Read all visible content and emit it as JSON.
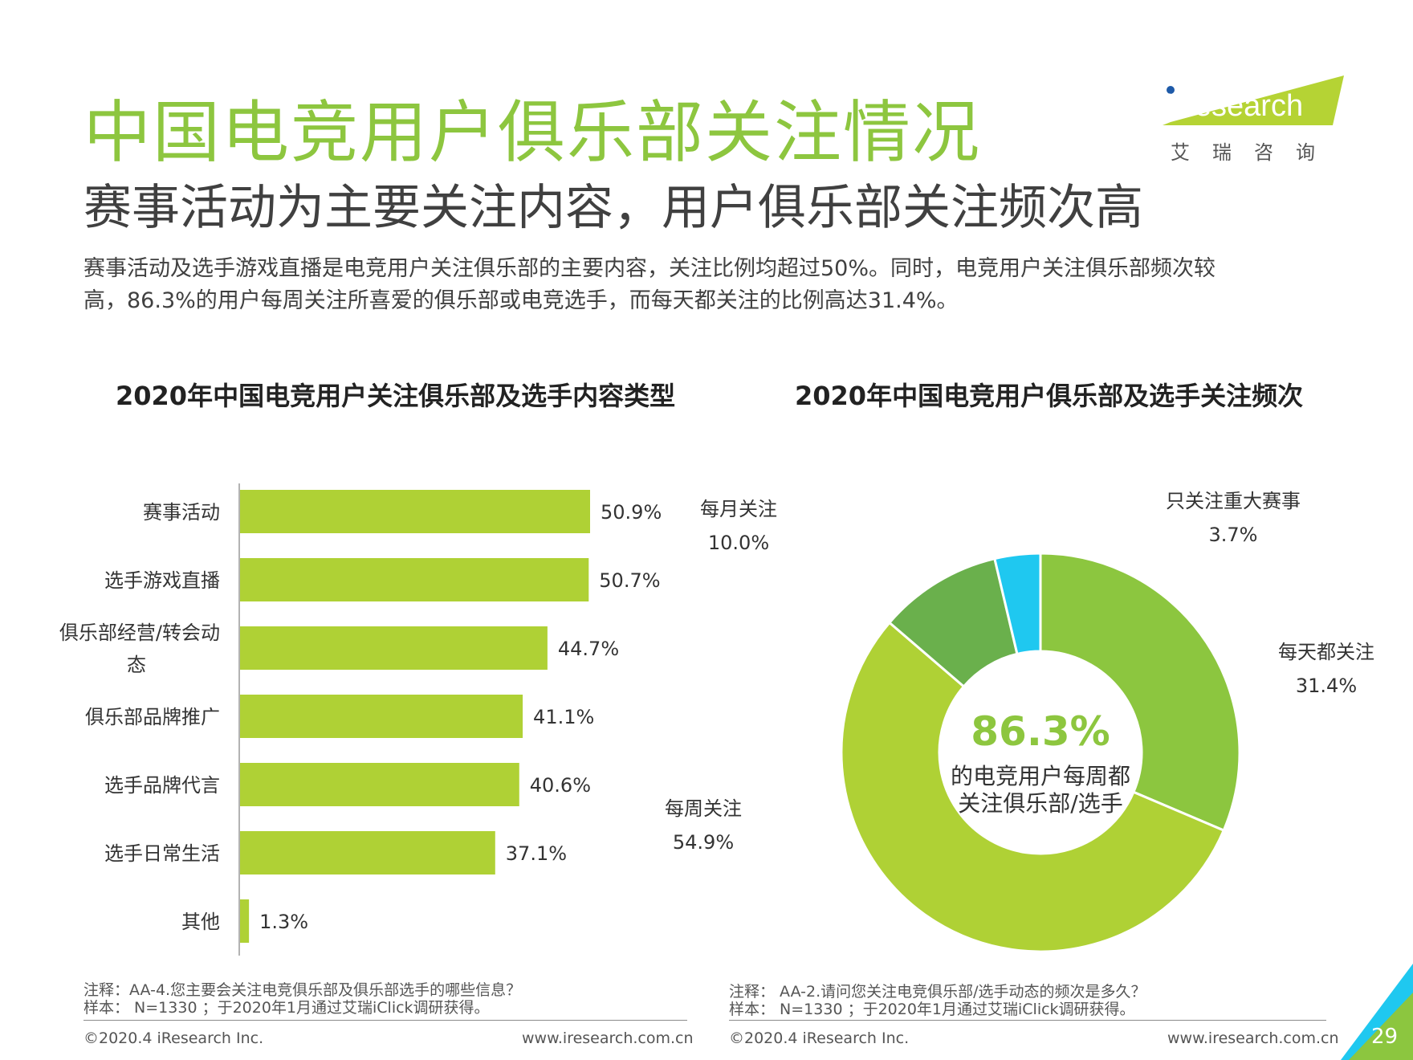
{
  "header": {
    "title": "中国电竞用户俱乐部关注情况",
    "subtitle": "赛事活动为主要关注内容，用户俱乐部关注频次高",
    "desc_line1": "赛事活动及选手游戏直播是电竞用户关注俱乐部的主要内容，关注比例均超过50%。同时，电竞用户关注俱乐部频次较",
    "desc_line2": "高，86.3%的用户每周关注所喜爱的俱乐部或电竞选手，而每天都关注的比例高达31.4%。"
  },
  "logo": {
    "text": "iResearch",
    "sub": "艾瑞咨询"
  },
  "colors": {
    "title_green": "#8dc63f",
    "bar_green": "#afd135",
    "dark_green": "#6ab04c",
    "mid_green": "#8cc63f",
    "cyan": "#1fc8f0"
  },
  "chart_data": [
    {
      "type": "bar",
      "title": "2020年中国电竞用户关注俱乐部及选手内容类型",
      "orientation": "horizontal",
      "categories": [
        "赛事活动",
        "选手游戏直播",
        "俱乐部经营/转会动态",
        "俱乐部品牌推广",
        "选手品牌代言",
        "选手日常生活",
        "其他"
      ],
      "category_lines": [
        [
          "赛事活动"
        ],
        [
          "选手游戏直播"
        ],
        [
          "俱乐部经营/转会动",
          "态"
        ],
        [
          "俱乐部品牌推广"
        ],
        [
          "选手品牌代言"
        ],
        [
          "选手日常生活"
        ],
        [
          "其他"
        ]
      ],
      "values": [
        50.9,
        50.7,
        44.7,
        41.1,
        40.6,
        37.1,
        1.3
      ],
      "labels": [
        "50.9%",
        "50.7%",
        "44.7%",
        "41.1%",
        "40.6%",
        "37.1%",
        "1.3%"
      ],
      "xlim": [
        0,
        60
      ],
      "color": "#afd135",
      "note_line1": "注释：AA-4.您主要会关注电竞俱乐部及俱乐部选手的哪些信息？",
      "note_line2": "样本： N=1330 ；于2020年1月通过艾瑞iClick调研获得。"
    },
    {
      "type": "pie",
      "variant": "donut",
      "title": "2020年中国电竞用户俱乐部及选手关注频次",
      "slices": [
        {
          "name": "每天都关注",
          "value": 31.4,
          "label": "31.4%",
          "color": "#8cc63f"
        },
        {
          "name": "每周关注",
          "value": 54.9,
          "label": "54.9%",
          "color": "#afd135"
        },
        {
          "name": "每月关注",
          "value": 10.0,
          "label": "10.0%",
          "color": "#6ab04c"
        },
        {
          "name": "只关注重大赛事",
          "value": 3.7,
          "label": "3.7%",
          "color": "#1fc8f0"
        }
      ],
      "center_value": "86.3%",
      "center_line1": "的电竞用户每周都",
      "center_line2": "关注俱乐部/选手",
      "note_line1": "注释： AA-2.请问您关注电竞俱乐部/选手动态的频次是多久？",
      "note_line2": "样本： N=1330 ；于2020年1月通过艾瑞iClick调研获得。"
    }
  ],
  "footer": {
    "copyright": "©2020.4 iResearch Inc.",
    "url": "www.iresearch.com.cn",
    "page_number": "29"
  }
}
